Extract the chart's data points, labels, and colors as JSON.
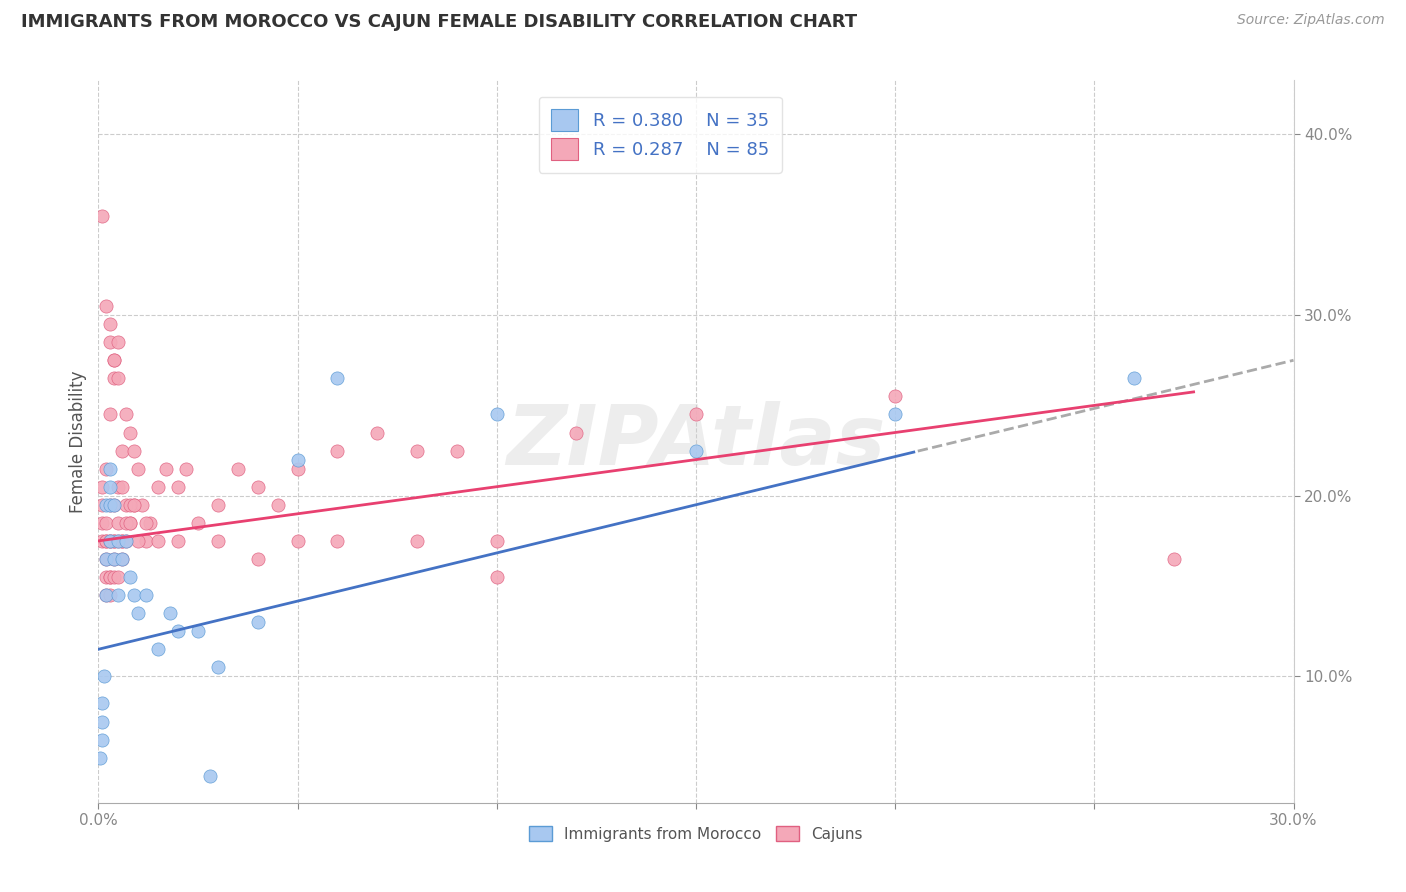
{
  "title": "IMMIGRANTS FROM MOROCCO VS CAJUN FEMALE DISABILITY CORRELATION CHART",
  "source": "Source: ZipAtlas.com",
  "ylabel": "Female Disability",
  "x_min": 0.0,
  "x_max": 0.3,
  "y_min": 0.03,
  "y_max": 0.43,
  "x_ticks": [
    0.0,
    0.05,
    0.1,
    0.15,
    0.2,
    0.25,
    0.3
  ],
  "x_tick_labels": [
    "0.0%",
    "",
    "",
    "",
    "",
    "",
    "30.0%"
  ],
  "y_ticks": [
    0.1,
    0.2,
    0.3,
    0.4
  ],
  "y_tick_labels": [
    "10.0%",
    "20.0%",
    "30.0%",
    "40.0%"
  ],
  "legend_r1": "0.380",
  "legend_n1": "35",
  "legend_r2": "0.287",
  "legend_n2": "85",
  "color_blue": "#A8C8F0",
  "color_blue_edge": "#5B9BD5",
  "color_pink": "#F4A8B8",
  "color_pink_edge": "#E06080",
  "color_trend_blue": "#4472C4",
  "color_trend_pink": "#E84070",
  "color_trend_dashed": "#AAAAAA",
  "blue_x": [
    0.0005,
    0.0008,
    0.001,
    0.001,
    0.0015,
    0.002,
    0.002,
    0.002,
    0.003,
    0.003,
    0.003,
    0.004,
    0.004,
    0.005,
    0.005,
    0.006,
    0.007,
    0.008,
    0.009,
    0.01,
    0.012,
    0.015,
    0.018,
    0.02,
    0.025,
    0.028,
    0.03,
    0.04,
    0.05,
    0.06,
    0.1,
    0.15,
    0.2,
    0.26,
    0.003
  ],
  "blue_y": [
    0.055,
    0.065,
    0.075,
    0.085,
    0.1,
    0.145,
    0.165,
    0.195,
    0.175,
    0.195,
    0.205,
    0.165,
    0.195,
    0.145,
    0.175,
    0.165,
    0.175,
    0.155,
    0.145,
    0.135,
    0.145,
    0.115,
    0.135,
    0.125,
    0.125,
    0.045,
    0.105,
    0.13,
    0.22,
    0.265,
    0.245,
    0.225,
    0.245,
    0.265,
    0.215
  ],
  "pink_x": [
    0.001,
    0.001,
    0.001,
    0.001,
    0.002,
    0.002,
    0.002,
    0.002,
    0.002,
    0.003,
    0.003,
    0.003,
    0.003,
    0.004,
    0.004,
    0.004,
    0.005,
    0.005,
    0.005,
    0.006,
    0.006,
    0.006,
    0.007,
    0.007,
    0.008,
    0.008,
    0.009,
    0.009,
    0.01,
    0.011,
    0.012,
    0.013,
    0.015,
    0.017,
    0.02,
    0.022,
    0.025,
    0.03,
    0.035,
    0.04,
    0.045,
    0.05,
    0.06,
    0.07,
    0.08,
    0.09,
    0.1,
    0.12,
    0.15,
    0.2,
    0.27,
    0.003,
    0.004,
    0.005,
    0.006,
    0.007,
    0.008,
    0.003,
    0.004,
    0.005,
    0.002,
    0.003,
    0.004,
    0.005,
    0.006,
    0.007,
    0.008,
    0.009,
    0.01,
    0.012,
    0.015,
    0.02,
    0.03,
    0.04,
    0.05,
    0.06,
    0.08,
    0.1,
    0.001,
    0.002,
    0.003,
    0.004,
    0.002,
    0.003,
    0.004
  ],
  "pink_y": [
    0.175,
    0.185,
    0.195,
    0.205,
    0.155,
    0.165,
    0.175,
    0.185,
    0.215,
    0.155,
    0.175,
    0.195,
    0.245,
    0.175,
    0.195,
    0.265,
    0.185,
    0.205,
    0.265,
    0.175,
    0.205,
    0.225,
    0.195,
    0.245,
    0.185,
    0.235,
    0.195,
    0.225,
    0.215,
    0.195,
    0.175,
    0.185,
    0.205,
    0.215,
    0.205,
    0.215,
    0.185,
    0.195,
    0.215,
    0.205,
    0.195,
    0.215,
    0.225,
    0.235,
    0.225,
    0.225,
    0.175,
    0.235,
    0.245,
    0.255,
    0.165,
    0.155,
    0.165,
    0.175,
    0.175,
    0.185,
    0.195,
    0.285,
    0.275,
    0.285,
    0.145,
    0.145,
    0.155,
    0.155,
    0.165,
    0.175,
    0.185,
    0.195,
    0.175,
    0.185,
    0.175,
    0.175,
    0.175,
    0.165,
    0.175,
    0.175,
    0.175,
    0.155,
    0.355,
    0.305,
    0.295,
    0.275,
    0.175,
    0.175,
    0.175
  ]
}
